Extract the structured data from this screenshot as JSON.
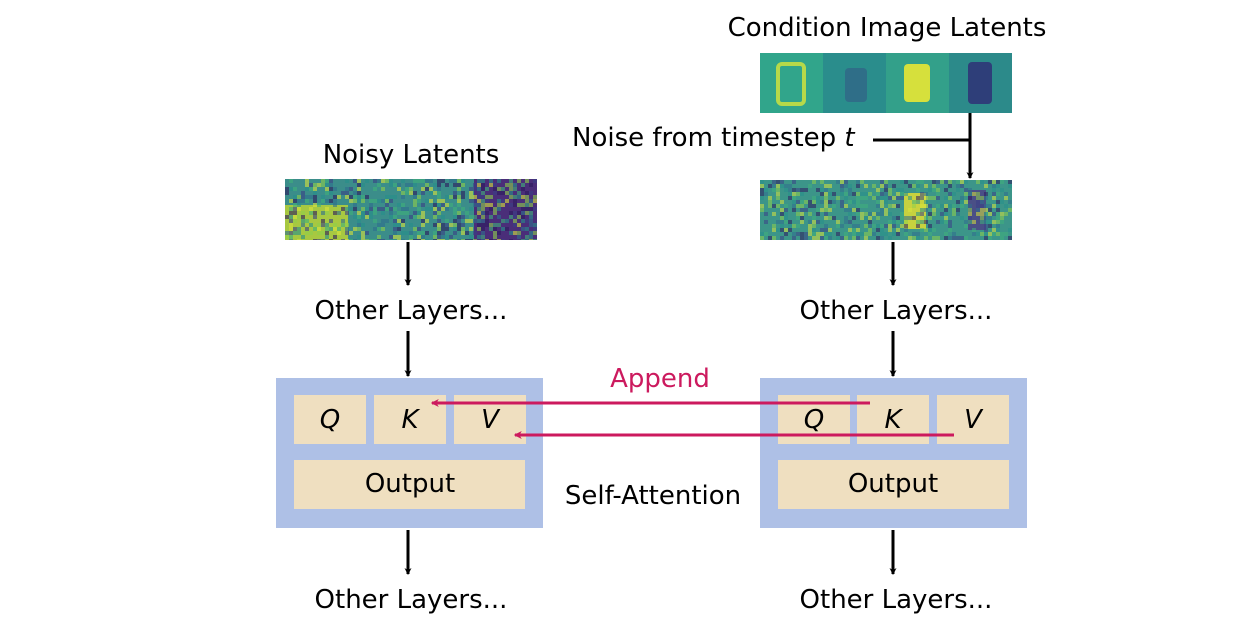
{
  "labels": {
    "condition_title": "Condition Image Latents",
    "noise_prefix": "Noise from timestep ",
    "noise_var": "t",
    "noisy_title": "Noisy Latents",
    "other_layers": "Other Layers...",
    "append": "Append",
    "self_attention": "Self-Attention",
    "q": "Q",
    "k": "K",
    "v": "V",
    "output": "Output"
  },
  "colors": {
    "block_bg": "#aec0e6",
    "cell_bg": "#efdfc0",
    "append_arrow": "#cc1a5e",
    "arrow": "#000000",
    "latent_low": "#3b1b6e",
    "latent_mid": "#2a8c8c",
    "latent_high": "#dfe63a"
  }
}
